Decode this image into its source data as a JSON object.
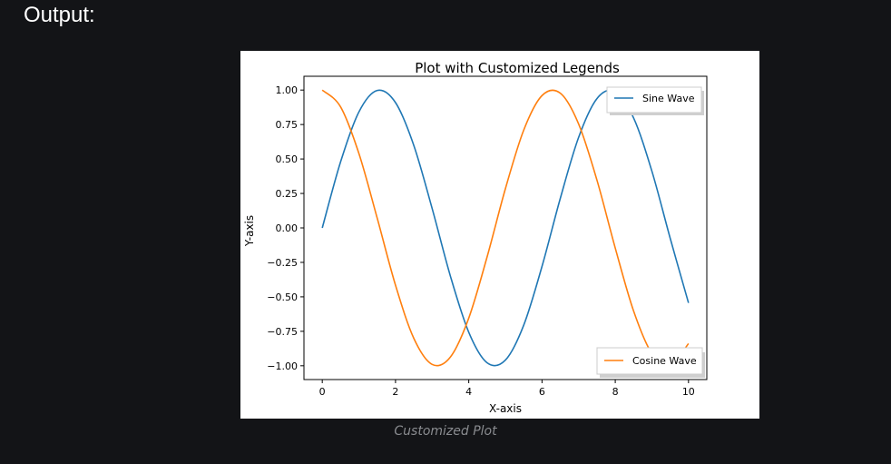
{
  "heading": "Output:",
  "caption": "Customized Plot",
  "chart_data": {
    "type": "line",
    "title": "Plot with Customized Legends",
    "xlabel": "X-axis",
    "ylabel": "Y-axis",
    "xlim": [
      -0.5,
      10.5
    ],
    "ylim": [
      -1.1,
      1.1
    ],
    "x_ticks": [
      0,
      2,
      4,
      6,
      8,
      10
    ],
    "x_tick_labels": [
      "0",
      "2",
      "4",
      "6",
      "8",
      "10"
    ],
    "y_ticks": [
      1.0,
      0.75,
      0.5,
      0.25,
      0.0,
      -0.25,
      -0.5,
      -0.75,
      -1.0
    ],
    "y_tick_labels": [
      "1.00",
      "0.75",
      "0.50",
      "0.25",
      "0.00",
      "−0.25",
      "−0.50",
      "−0.75",
      "−1.00"
    ],
    "grid": false,
    "x": [
      0.0,
      0.5,
      1.0,
      1.5,
      2.0,
      2.5,
      3.0,
      3.5,
      4.0,
      4.5,
      5.0,
      5.5,
      6.0,
      6.5,
      7.0,
      7.5,
      8.0,
      8.5,
      9.0,
      9.5,
      10.0
    ],
    "series": [
      {
        "name": "Sine Wave",
        "color": "#1f77b4",
        "legend_position": "upper-right",
        "values": [
          0.0,
          0.479,
          0.841,
          0.997,
          0.909,
          0.598,
          0.141,
          -0.351,
          -0.757,
          -0.978,
          -0.959,
          -0.706,
          -0.279,
          0.215,
          0.657,
          0.938,
          0.989,
          0.798,
          0.412,
          -0.075,
          -0.544
        ]
      },
      {
        "name": "Cosine Wave",
        "color": "#ff7f0e",
        "legend_position": "lower-right",
        "values": [
          1.0,
          0.878,
          0.54,
          0.071,
          -0.416,
          -0.801,
          -0.99,
          -0.936,
          -0.654,
          -0.211,
          0.284,
          0.709,
          0.96,
          0.977,
          0.754,
          0.347,
          -0.146,
          -0.602,
          -0.911,
          -0.997,
          -0.839
        ]
      }
    ]
  }
}
